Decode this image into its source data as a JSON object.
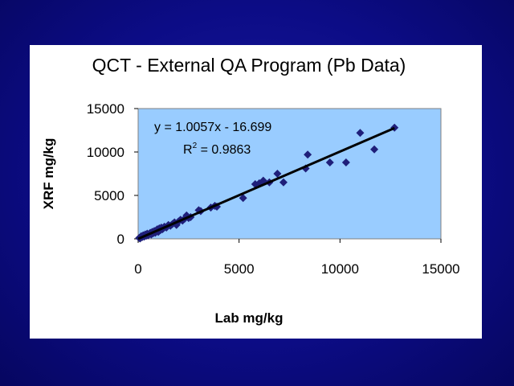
{
  "colors": {
    "background": "#0c0c86",
    "panel": "#ffffff",
    "plot_area": "#99ccff",
    "markers": "#1f1f7a",
    "trendline": "#000000"
  },
  "chart_data": {
    "type": "scatter",
    "title": "QCT - External QA Program (Pb Data)",
    "xlabel": "Lab mg/kg",
    "ylabel": "XRF mg/kg",
    "xlim": [
      0,
      15000
    ],
    "ylim": [
      0,
      15000
    ],
    "xticks": [
      "0",
      "5000",
      "10000",
      "15000"
    ],
    "yticks": [
      "0",
      "5000",
      "10000",
      "15000"
    ],
    "grid": false,
    "legend": "none",
    "marker": "diamond",
    "trendline": {
      "equation": "y = 1.0057x - 16.699",
      "r_squared_prefix": "R",
      "r_squared_exp": "2",
      "r_squared_value": " = 0.9863",
      "slope": 1.0057,
      "intercept": -16.699
    },
    "series": [
      {
        "x": [
          50,
          100,
          150,
          200,
          250,
          300,
          350,
          400,
          450,
          500,
          550,
          600,
          650,
          700,
          750,
          800,
          850,
          900,
          950,
          1000,
          1050,
          1100,
          1150,
          1200,
          1250,
          1300,
          1400,
          1500,
          1600,
          1700,
          1800,
          1900,
          2000,
          2100,
          2200,
          2300,
          2400,
          2500,
          2600,
          3000,
          3100,
          3600,
          3800,
          3900,
          5200,
          5800,
          6000,
          6200,
          6500,
          6900,
          7200,
          8300,
          8400,
          9500,
          10300,
          11000,
          11700,
          12700
        ],
        "y": [
          100,
          50,
          300,
          200,
          400,
          250,
          500,
          350,
          600,
          400,
          550,
          700,
          500,
          800,
          650,
          900,
          700,
          1000,
          1100,
          800,
          1200,
          1000,
          1300,
          1100,
          1200,
          1400,
          1300,
          1600,
          1500,
          1700,
          1900,
          1600,
          2000,
          2200,
          2100,
          2300,
          2700,
          2400,
          2500,
          3300,
          3200,
          3600,
          3800,
          3700,
          4700,
          6300,
          6400,
          6700,
          6500,
          7500,
          6500,
          8100,
          9700,
          8800,
          8800,
          12200,
          10300,
          12800
        ]
      }
    ]
  }
}
